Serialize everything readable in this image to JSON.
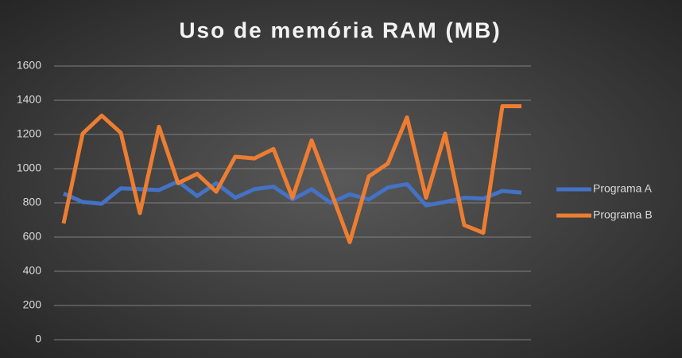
{
  "chart_data": {
    "type": "line",
    "title": "Uso de memória RAM (MB)",
    "categories": [
      null,
      null,
      null,
      null,
      null,
      null,
      null,
      null,
      null,
      null,
      null,
      null,
      null,
      null,
      null,
      null,
      null,
      null,
      null,
      null,
      null,
      null,
      null,
      null,
      null
    ],
    "series": [
      {
        "name": "Programa A",
        "color": "#4472c4",
        "values": [
          855,
          805,
          795,
          885,
          880,
          875,
          925,
          840,
          915,
          830,
          880,
          895,
          820,
          880,
          800,
          850,
          820,
          890,
          910,
          785,
          805,
          830,
          825,
          870,
          860
        ]
      },
      {
        "name": "Programa B",
        "color": "#ed7d31",
        "values": [
          680,
          1205,
          1310,
          1210,
          740,
          1245,
          915,
          970,
          865,
          1070,
          1060,
          1115,
          830,
          1165,
          870,
          570,
          955,
          1030,
          1300,
          830,
          1205,
          670,
          625,
          1365,
          1365
        ]
      }
    ],
    "ylim": [
      0,
      1600
    ],
    "yticks": [
      0,
      200,
      400,
      600,
      800,
      1000,
      1200,
      1400,
      1600
    ],
    "grid": true,
    "legend": "right"
  }
}
